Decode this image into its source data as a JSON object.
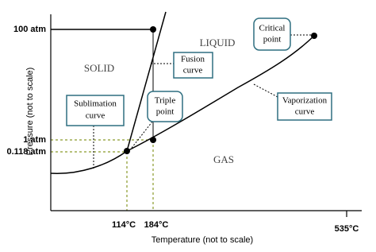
{
  "axes": {
    "y_label": "Pressure (not to scale)",
    "x_label": "Temperature (not to scale)",
    "y_ticks": [
      "100 atm",
      "1 atm",
      "0.118 atm"
    ],
    "x_ticks": [
      "114°C",
      "184°C",
      "535°C"
    ]
  },
  "regions": [
    "SOLID",
    "LIQUID",
    "GAS"
  ],
  "callouts": {
    "fusion": [
      "Fusion",
      "curve"
    ],
    "sublimation": [
      "Sublimation",
      "curve"
    ],
    "triple": [
      "Triple",
      "point"
    ],
    "critical": [
      "Critical",
      "point"
    ],
    "vaporization": [
      "Vaporization",
      "curve"
    ]
  }
}
